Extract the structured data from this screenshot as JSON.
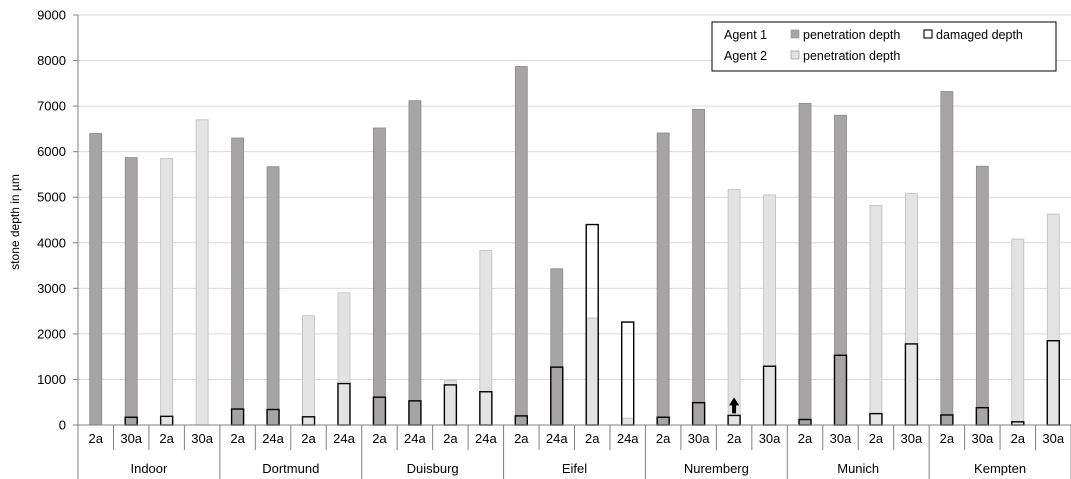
{
  "chart_data": {
    "type": "bar",
    "ylabel": "stone depth in µm",
    "ylim": [
      0,
      9000
    ],
    "yticks": [
      0,
      1000,
      2000,
      3000,
      4000,
      5000,
      6000,
      7000,
      8000,
      9000
    ],
    "grid": true,
    "legend_position": "top-right",
    "legend": {
      "rows": [
        {
          "label": "Agent 1",
          "entries": [
            {
              "label": "penetration depth",
              "key": "a1_penetration"
            },
            {
              "label": "damaged depth",
              "key": "damaged"
            }
          ]
        },
        {
          "label": "Agent 2",
          "entries": [
            {
              "label": "penetration depth",
              "key": "a2_penetration"
            }
          ]
        }
      ]
    },
    "colors": {
      "a1_penetration": "#a6a4a5",
      "a2_penetration": "#e3e3e3",
      "damaged": "#ffffff",
      "grid": "#d9d9d9",
      "axis": "#808080",
      "outline": "#000000"
    },
    "overflow_arrow_bar_index": 18,
    "groups": [
      {
        "name": "Indoor",
        "categories": [
          "2a",
          "30a",
          "2a",
          "30a"
        ]
      },
      {
        "name": "Dortmund",
        "categories": [
          "2a",
          "24a",
          "2a",
          "24a"
        ]
      },
      {
        "name": "Duisburg",
        "categories": [
          "2a",
          "24a",
          "2a",
          "24a"
        ]
      },
      {
        "name": "Eifel",
        "categories": [
          "2a",
          "24a",
          "2a",
          "24a"
        ]
      },
      {
        "name": "Nuremberg",
        "categories": [
          "2a",
          "30a",
          "2a",
          "30a"
        ]
      },
      {
        "name": "Munich",
        "categories": [
          "2a",
          "30a",
          "2a",
          "30a"
        ]
      },
      {
        "name": "Kempten",
        "categories": [
          "2a",
          "30a",
          "2a",
          "30a"
        ]
      }
    ],
    "bars": [
      {
        "agent": 1,
        "penetration_depth": 6400,
        "damaged_depth": 0
      },
      {
        "agent": 1,
        "penetration_depth": 5870,
        "damaged_depth": 170
      },
      {
        "agent": 2,
        "penetration_depth": 5850,
        "damaged_depth": 190
      },
      {
        "agent": 2,
        "penetration_depth": 6700,
        "damaged_depth": 0
      },
      {
        "agent": 1,
        "penetration_depth": 6300,
        "damaged_depth": 350
      },
      {
        "agent": 1,
        "penetration_depth": 5670,
        "damaged_depth": 340
      },
      {
        "agent": 2,
        "penetration_depth": 2400,
        "damaged_depth": 180
      },
      {
        "agent": 2,
        "penetration_depth": 2900,
        "damaged_depth": 910
      },
      {
        "agent": 1,
        "penetration_depth": 6520,
        "damaged_depth": 610
      },
      {
        "agent": 1,
        "penetration_depth": 7120,
        "damaged_depth": 530
      },
      {
        "agent": 2,
        "penetration_depth": 980,
        "damaged_depth": 880
      },
      {
        "agent": 2,
        "penetration_depth": 3830,
        "damaged_depth": 730
      },
      {
        "agent": 1,
        "penetration_depth": 7870,
        "damaged_depth": 200
      },
      {
        "agent": 1,
        "penetration_depth": 3430,
        "damaged_depth": 1270
      },
      {
        "agent": 2,
        "penetration_depth": 2350,
        "damaged_depth": 4400
      },
      {
        "agent": 2,
        "penetration_depth": 150,
        "damaged_depth": 2260
      },
      {
        "agent": 1,
        "penetration_depth": 6410,
        "damaged_depth": 170
      },
      {
        "agent": 1,
        "penetration_depth": 6930,
        "damaged_depth": 490
      },
      {
        "agent": 2,
        "penetration_depth": 5170,
        "damaged_depth": 210
      },
      {
        "agent": 2,
        "penetration_depth": 5050,
        "damaged_depth": 1290
      },
      {
        "agent": 1,
        "penetration_depth": 7060,
        "damaged_depth": 120
      },
      {
        "agent": 1,
        "penetration_depth": 6800,
        "damaged_depth": 1530
      },
      {
        "agent": 2,
        "penetration_depth": 4820,
        "damaged_depth": 250
      },
      {
        "agent": 2,
        "penetration_depth": 5080,
        "damaged_depth": 1780
      },
      {
        "agent": 1,
        "penetration_depth": 7320,
        "damaged_depth": 220
      },
      {
        "agent": 1,
        "penetration_depth": 5680,
        "damaged_depth": 380
      },
      {
        "agent": 2,
        "penetration_depth": 4080,
        "damaged_depth": 70
      },
      {
        "agent": 2,
        "penetration_depth": 4630,
        "damaged_depth": 1850
      }
    ]
  }
}
